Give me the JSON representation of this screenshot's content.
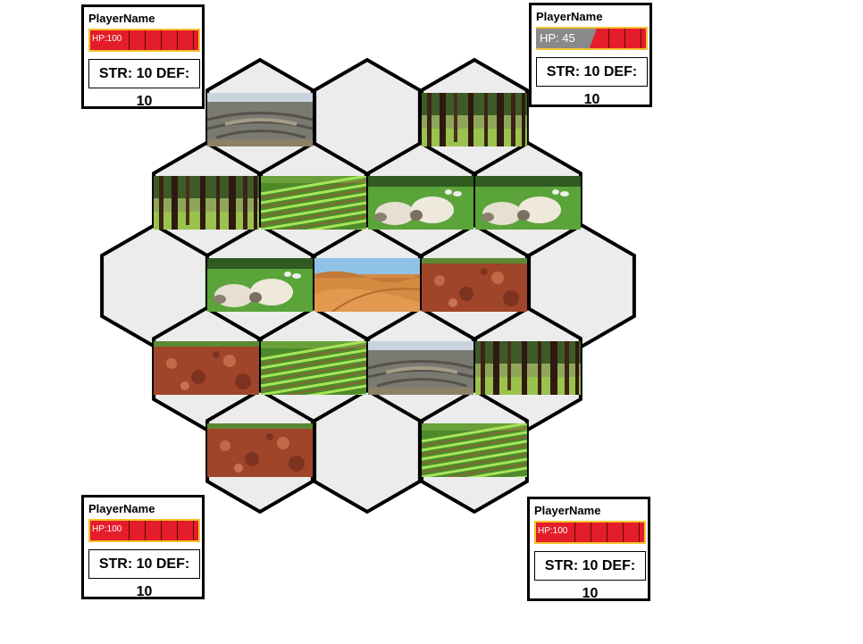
{
  "players": [
    {
      "name": "PlayerName",
      "hp_label": "HP:100",
      "hp": 100,
      "stats": "STR: 10 DEF: 10"
    },
    {
      "name": "PlayerName",
      "hp_label": "HP: 45",
      "hp": 45,
      "stats": "STR: 10 DEF: 10"
    },
    {
      "name": "PlayerName",
      "hp_label": "HP:100",
      "hp": 100,
      "stats": "STR: 10 DEF: 10"
    },
    {
      "name": "PlayerName",
      "hp_label": "HP:100",
      "hp": 100,
      "stats": "STR: 10 DEF: 10"
    }
  ],
  "tiles": [
    {
      "terrain": "mine"
    },
    {
      "terrain": "empty"
    },
    {
      "terrain": "forest"
    },
    {
      "terrain": "forest"
    },
    {
      "terrain": "crops"
    },
    {
      "terrain": "pasture"
    },
    {
      "terrain": "pasture"
    },
    {
      "terrain": "empty"
    },
    {
      "terrain": "pasture"
    },
    {
      "terrain": "desert"
    },
    {
      "terrain": "clay"
    },
    {
      "terrain": "empty"
    },
    {
      "terrain": "clay"
    },
    {
      "terrain": "crops"
    },
    {
      "terrain": "mine"
    },
    {
      "terrain": "forest"
    },
    {
      "terrain": "clay"
    },
    {
      "terrain": "empty"
    },
    {
      "terrain": "crops"
    }
  ]
}
